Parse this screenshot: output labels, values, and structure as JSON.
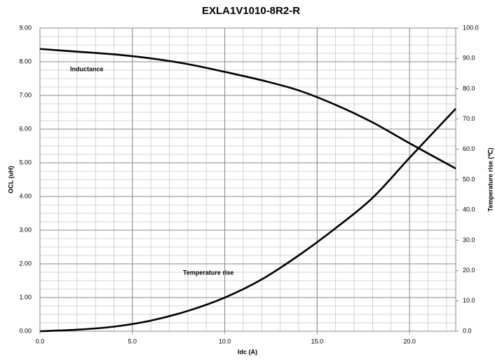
{
  "chart_data": {
    "type": "line",
    "title": "EXLA1V1010-8R2-R",
    "xlabel": "Idc (A)",
    "ylabel": "OCL (uH)",
    "y2label": "Temperature rise (℃)",
    "annotations": [
      "Inductance",
      "Temperature rise"
    ],
    "x": [
      0,
      2,
      4,
      6,
      8,
      10,
      12,
      14,
      16,
      18,
      20,
      22.5
    ],
    "series": [
      {
        "name": "Inductance",
        "color": "#000000",
        "axis": "y",
        "values": [
          8.38,
          8.3,
          8.22,
          8.1,
          7.93,
          7.7,
          7.45,
          7.15,
          6.72,
          6.2,
          5.58,
          4.83
        ]
      },
      {
        "name": "Temperature rise",
        "color": "#000000",
        "axis": "y2",
        "values": [
          0,
          0.5,
          1.5,
          3.5,
          6.7,
          11.1,
          17.1,
          25,
          34,
          44,
          57.2,
          73.4
        ]
      }
    ],
    "xlim": [
      0,
      22.5
    ],
    "xticks": [
      {
        "value": 0,
        "label": "0.0"
      },
      {
        "value": 5,
        "label": "5.0"
      },
      {
        "value": 10,
        "label": "10.0"
      },
      {
        "value": 15,
        "label": "15.0"
      },
      {
        "value": 20,
        "label": "20.0"
      }
    ],
    "ylim": [
      0,
      9
    ],
    "yticks": [
      {
        "value": 0,
        "label": "0.00"
      },
      {
        "value": 1,
        "label": "1.00"
      },
      {
        "value": 2,
        "label": "2.00"
      },
      {
        "value": 3,
        "label": "3.00"
      },
      {
        "value": 4,
        "label": "4.00"
      },
      {
        "value": 5,
        "label": "5.00"
      },
      {
        "value": 6,
        "label": "6.00"
      },
      {
        "value": 7,
        "label": "7.00"
      },
      {
        "value": 8,
        "label": "8.00"
      },
      {
        "value": 9,
        "label": "9.00"
      }
    ],
    "y2lim": [
      0,
      100
    ],
    "y2ticks": [
      {
        "value": 0,
        "label": "0.0"
      },
      {
        "value": 10,
        "label": "10.0"
      },
      {
        "value": 20,
        "label": "20.0"
      },
      {
        "value": 30,
        "label": "30.0"
      },
      {
        "value": 40,
        "label": "40.0"
      },
      {
        "value": 50,
        "label": "50.0"
      },
      {
        "value": 60,
        "label": "60.0"
      },
      {
        "value": 70,
        "label": "70.0"
      },
      {
        "value": 80,
        "label": "80.0"
      },
      {
        "value": 90,
        "label": "90.0"
      },
      {
        "value": 100,
        "label": "100.0"
      }
    ],
    "grid": true,
    "minor_grid": {
      "x": 1,
      "y": 0.25
    }
  }
}
